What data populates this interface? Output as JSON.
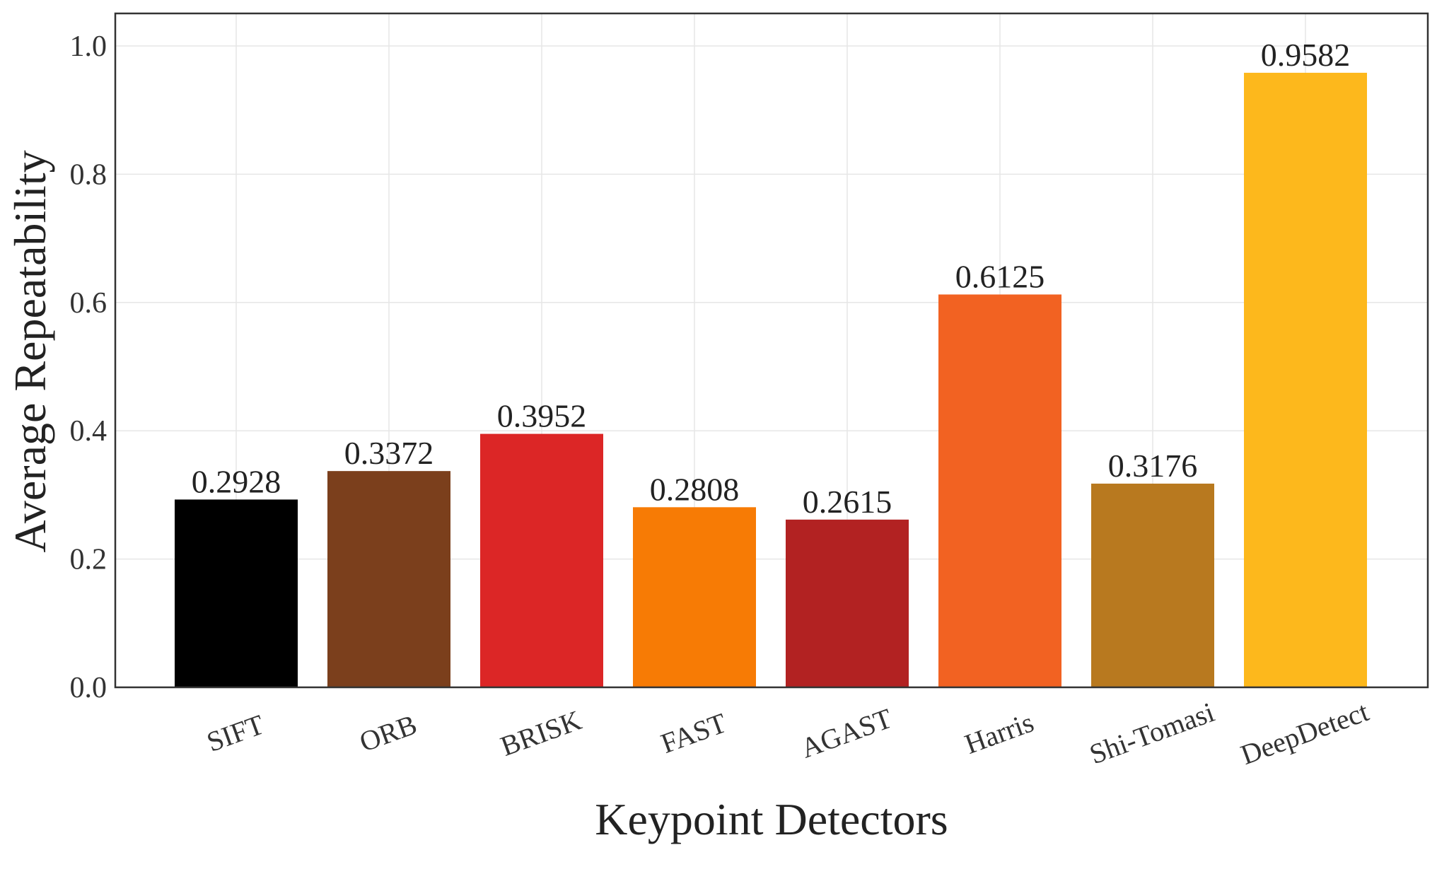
{
  "chart_data": {
    "type": "bar",
    "title": "",
    "xlabel": "Keypoint Detectors",
    "ylabel": "Average Repeatability",
    "categories": [
      "SIFT",
      "ORB",
      "BRISK",
      "FAST",
      "AGAST",
      "Harris",
      "Shi-Tomasi",
      "DeepDetect"
    ],
    "values": [
      0.2928,
      0.3372,
      0.3952,
      0.2808,
      0.2615,
      0.6125,
      0.3176,
      0.9582
    ],
    "value_labels": [
      "0.2928",
      "0.3372",
      "0.3952",
      "0.2808",
      "0.2615",
      "0.6125",
      "0.3176",
      "0.9582"
    ],
    "colors": [
      "#000000",
      "#7b3f1c",
      "#dc2626",
      "#f77b05",
      "#b22222",
      "#f26222",
      "#b8791f",
      "#fdb81c"
    ],
    "ylim": [
      0,
      1.05
    ],
    "yticks": [
      0.0,
      0.2,
      0.4,
      0.6,
      0.8,
      1.0
    ],
    "ytick_labels": [
      "0.0",
      "0.2",
      "0.4",
      "0.6",
      "0.8",
      "1.0"
    ],
    "grid": true,
    "legend": "none"
  }
}
